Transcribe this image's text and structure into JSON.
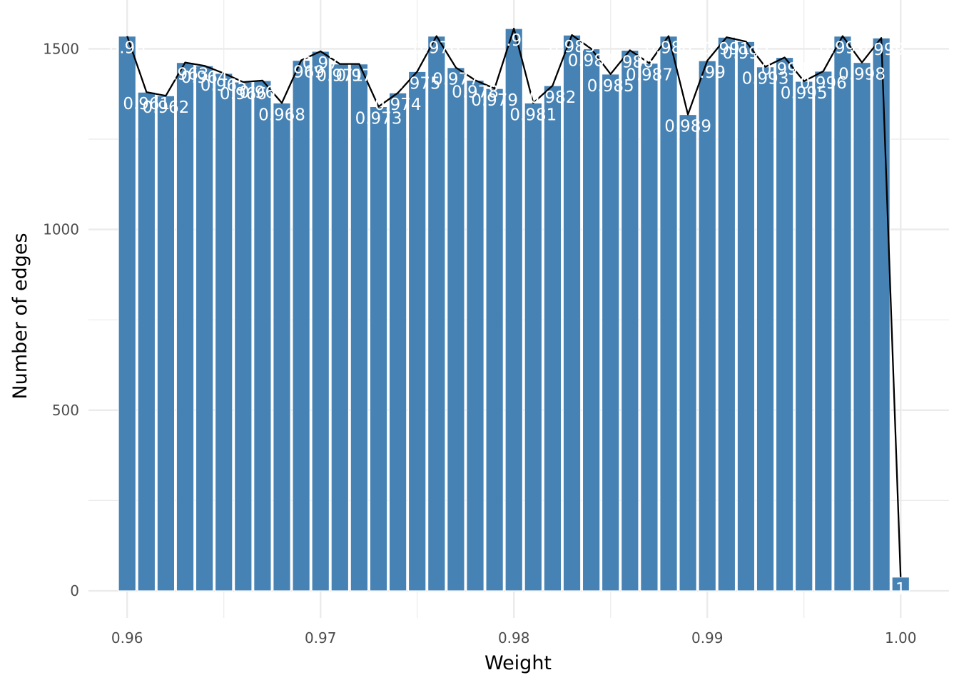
{
  "chart_data": {
    "type": "bar",
    "title": "",
    "xlabel": "Weight",
    "ylabel": "Number of edges",
    "xlim": [
      0.958,
      1.0025
    ],
    "ylim": [
      -75,
      1635
    ],
    "x_ticks": [
      "0.96",
      "0.97",
      "0.98",
      "0.99",
      "1.00"
    ],
    "y_ticks": [
      "0",
      "500",
      "1000",
      "1500"
    ],
    "grid": true,
    "legend": "none",
    "colors": {
      "bar": "#4682b4",
      "bar_outline": "#ffffff",
      "line": "#000000",
      "label": "#ffffff",
      "grid": "#ebebeb"
    },
    "x": [
      0.96,
      0.961,
      0.962,
      0.963,
      0.964,
      0.965,
      0.966,
      0.967,
      0.968,
      0.969,
      0.97,
      0.971,
      0.972,
      0.973,
      0.974,
      0.975,
      0.976,
      0.977,
      0.978,
      0.979,
      0.98,
      0.981,
      0.982,
      0.983,
      0.984,
      0.985,
      0.986,
      0.987,
      0.988,
      0.989,
      0.99,
      0.991,
      0.992,
      0.993,
      0.994,
      0.995,
      0.996,
      0.997,
      0.998,
      0.999,
      1.0
    ],
    "labels": [
      "0.96",
      "0.961",
      "0.962",
      "0.963",
      "0.964",
      "0.965",
      "0.966",
      "0.967",
      "0.968",
      "0.969",
      "0.97",
      "0.971",
      "0.972",
      "0.973",
      "0.974",
      "0.975",
      "0.976",
      "0.977",
      "0.978",
      "0.979",
      "0.98",
      "0.981",
      "0.982",
      "0.983",
      "0.984",
      "0.985",
      "0.986",
      "0.987",
      "0.988",
      "0.989",
      "0.99",
      "0.991",
      "0.992",
      "0.993",
      "0.994",
      "0.995",
      "0.996",
      "0.997",
      "0.998",
      "0.999",
      "1"
    ],
    "values": [
      1535,
      1380,
      1370,
      1462,
      1453,
      1432,
      1408,
      1412,
      1350,
      1468,
      1493,
      1458,
      1458,
      1340,
      1378,
      1437,
      1535,
      1448,
      1413,
      1390,
      1556,
      1350,
      1398,
      1538,
      1500,
      1430,
      1496,
      1460,
      1535,
      1318,
      1467,
      1532,
      1520,
      1450,
      1476,
      1410,
      1438,
      1535,
      1462,
      1530,
      38
    ]
  }
}
